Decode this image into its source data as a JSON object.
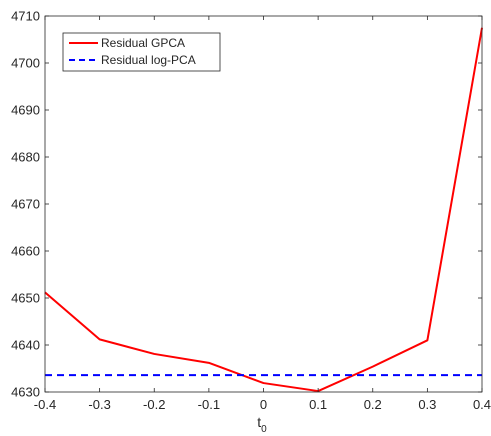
{
  "chart_data": {
    "type": "line",
    "xlabel": "t",
    "xlabel_subscript": "0",
    "ylabel": "",
    "xlim": [
      -0.4,
      0.4
    ],
    "ylim": [
      4630,
      4710
    ],
    "xticks": [
      -0.4,
      -0.3,
      -0.2,
      -0.1,
      0,
      0.1,
      0.2,
      0.3,
      0.4
    ],
    "xtick_labels": [
      "-0.4",
      "-0.3",
      "-0.2",
      "-0.1",
      "0",
      "0.1",
      "0.2",
      "0.3",
      "0.4"
    ],
    "yticks": [
      4630,
      4640,
      4650,
      4660,
      4670,
      4680,
      4690,
      4700,
      4710
    ],
    "ytick_labels": [
      "4630",
      "4640",
      "4650",
      "4660",
      "4670",
      "4680",
      "4690",
      "4700",
      "4710"
    ],
    "grid": false,
    "legend_position": "top-left",
    "series": [
      {
        "name": "Residual GPCA",
        "color": "#ff0000",
        "line_style": "solid",
        "x": [
          -0.4,
          -0.3,
          -0.2,
          -0.1,
          0,
          0.1,
          0.2,
          0.3,
          0.4
        ],
        "y": [
          4651.2,
          4641.2,
          4638.1,
          4636.2,
          4631.9,
          4630.2,
          4635.4,
          4641.0,
          4707.5
        ]
      },
      {
        "name": "Residual log-PCA",
        "color": "#0000ff",
        "line_style": "dashed",
        "x": [
          -0.4,
          0.4
        ],
        "y": [
          4633.6,
          4633.6
        ]
      }
    ]
  }
}
